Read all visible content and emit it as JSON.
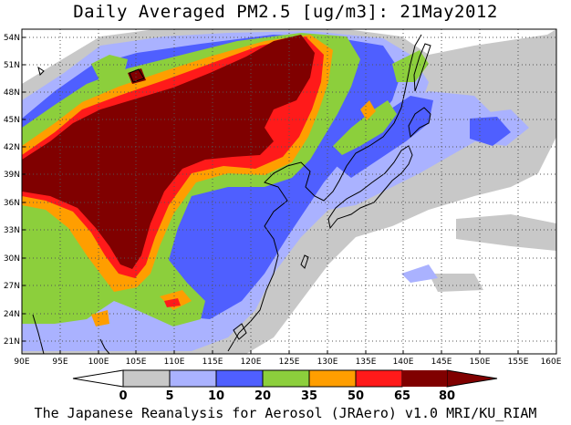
{
  "title": "Daily Averaged PM2.5 [ug/m3]: 21May2012",
  "credit": "The Japanese Reanalysis for Aerosol (JRAero) v1.0 MRI/KU_RIAM",
  "lat_labels": [
    "54N",
    "51N",
    "48N",
    "45N",
    "42N",
    "39N",
    "36N",
    "33N",
    "30N",
    "27N",
    "24N",
    "21N"
  ],
  "lon_labels": [
    "90E",
    "95E",
    "100E",
    "105E",
    "110E",
    "115E",
    "120E",
    "125E",
    "130E",
    "135E",
    "140E",
    "145E",
    "150E",
    "155E",
    "160E"
  ],
  "colorbar": {
    "ticks": [
      "0",
      "5",
      "10",
      "20",
      "35",
      "50",
      "65",
      "80"
    ],
    "colors": [
      "#ffffff",
      "#c8c8c8",
      "#aab2ff",
      "#4f5fff",
      "#8ccf3c",
      "#ff9e00",
      "#ff1a1a",
      "#800000"
    ]
  },
  "map_style": {
    "grid_lines": "dotted",
    "domain": {
      "lon": [
        90,
        160
      ],
      "lat": [
        19.5,
        55
      ]
    }
  }
}
